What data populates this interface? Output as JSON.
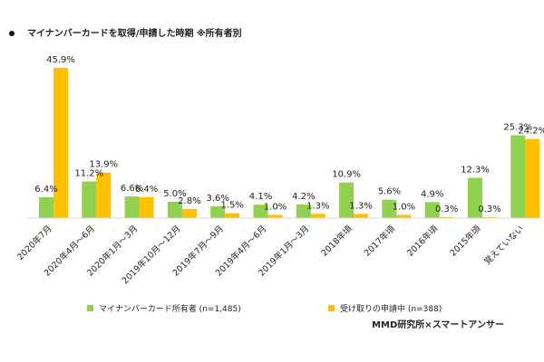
{
  "chart_data": {
    "type": "bar",
    "title": "マイナンバーカードを取得/申請した時期 ※所有者別",
    "categories": [
      "2020年7月",
      "2020年4月～6月",
      "2020年1月～3月",
      "2019年10月～12月",
      "2019年7月～9月",
      "2019年4月～6月",
      "2019年1月～3月",
      "2018年頃",
      "2017年頃",
      "2016年頃",
      "2015年頃",
      "覚えていない"
    ],
    "series": [
      {
        "name": "マイナンバーカード所有者 (n=1,485)",
        "color": "#92d050",
        "values": [
          6.4,
          11.2,
          6.6,
          5.0,
          3.6,
          4.1,
          4.2,
          10.9,
          5.6,
          4.9,
          12.3,
          25.3
        ]
      },
      {
        "name": "受け取りの申請中 (n=388)",
        "color": "#ffc000",
        "values": [
          45.9,
          13.9,
          6.4,
          2.8,
          1.5,
          1.0,
          1.3,
          1.3,
          1.0,
          0.3,
          0.3,
          24.2
        ]
      }
    ],
    "value_suffix": "%",
    "ylim": [
      0,
      50
    ],
    "grid": false,
    "legend_position": "bottom"
  },
  "credit": "MMD研究所×スマートアンサー"
}
